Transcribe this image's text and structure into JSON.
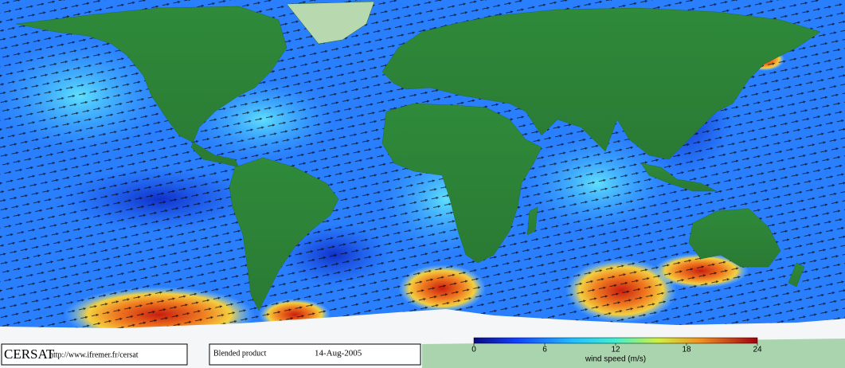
{
  "map": {
    "type": "wind-field",
    "footer": {
      "logo": "CERSAT",
      "url": "http://www.ifremer.fr/cersat",
      "product": "Blended product",
      "date": "14-Aug-2005"
    },
    "colorbar": {
      "label": "wind speed (m/s)",
      "lim": [
        0,
        24
      ],
      "ticks": [
        0,
        6,
        12,
        18,
        24
      ]
    }
  }
}
